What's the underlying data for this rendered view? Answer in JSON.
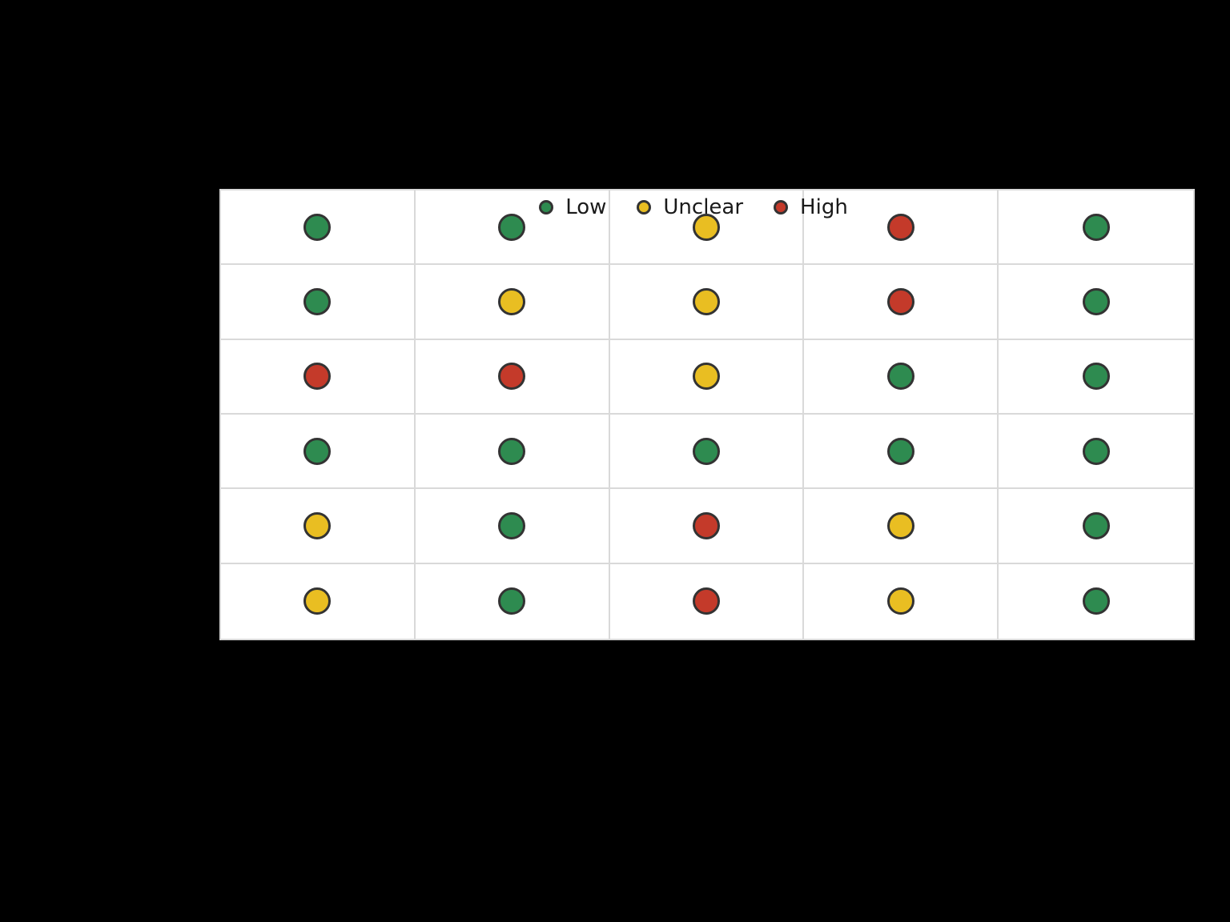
{
  "page": {
    "background_color": "#000000",
    "panel_background_color": "#ffffff",
    "grid_line_color": "#d9d9d9",
    "dot_outline_color": "#333333",
    "legend_text_color": "#1a1a1a"
  },
  "legend": {
    "items": [
      {
        "label": "Low",
        "color": "#2e8b50"
      },
      {
        "label": "Unclear",
        "color": "#e9be22"
      },
      {
        "label": "High",
        "color": "#c43a2a"
      }
    ]
  },
  "chart_data": {
    "type": "heatmap",
    "subtype": "risk-of-bias-traffic-light-matrix",
    "title": "",
    "xlabel": "",
    "ylabel": "",
    "n_rows": 6,
    "n_cols": 5,
    "row_labels_visible": false,
    "col_labels_visible": false,
    "legend_entries": [
      "Low",
      "Unclear",
      "High"
    ],
    "legend_position": "top-center-inside",
    "grid": true,
    "matrix": [
      [
        "Low",
        "Low",
        "Unclear",
        "High",
        "Low"
      ],
      [
        "Low",
        "Unclear",
        "Unclear",
        "High",
        "Low"
      ],
      [
        "High",
        "High",
        "Unclear",
        "Low",
        "Low"
      ],
      [
        "Low",
        "Low",
        "Low",
        "Low",
        "Low"
      ],
      [
        "Unclear",
        "Low",
        "High",
        "Unclear",
        "Low"
      ],
      [
        "Unclear",
        "Low",
        "High",
        "Unclear",
        "Low"
      ]
    ],
    "colors": {
      "Low": "#2e8b50",
      "Unclear": "#e9be22",
      "High": "#c43a2a"
    }
  }
}
